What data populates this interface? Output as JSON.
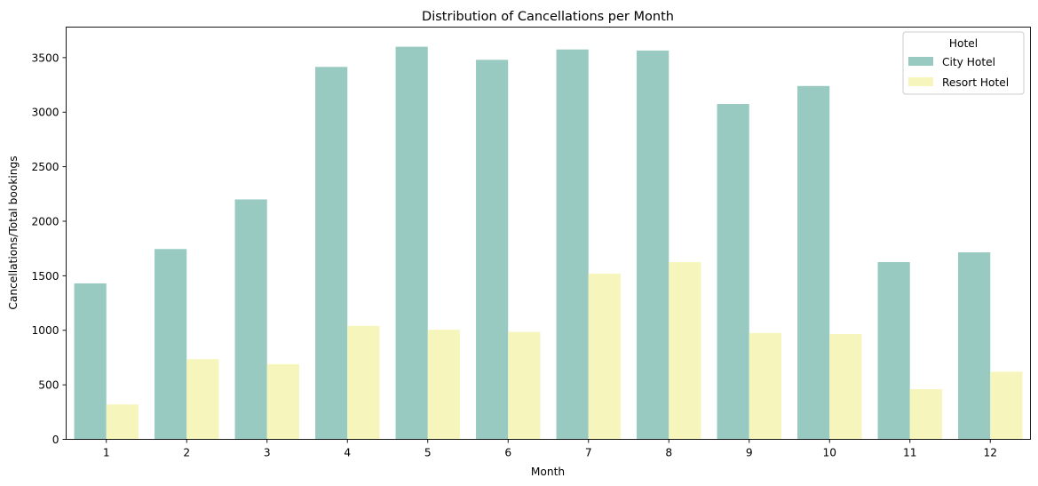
{
  "chart_data": {
    "type": "bar",
    "title": "Distribution of Cancellations per Month",
    "xlabel": "Month",
    "ylabel": "Cancellations/Total bookings",
    "categories": [
      "1",
      "2",
      "3",
      "4",
      "5",
      "6",
      "7",
      "8",
      "9",
      "10",
      "11",
      "12"
    ],
    "series": [
      {
        "name": "City Hotel",
        "color": "#98cac1",
        "values": [
          1430,
          1745,
          2200,
          3415,
          3600,
          3480,
          3575,
          3565,
          3075,
          3240,
          1625,
          1715
        ]
      },
      {
        "name": "Resort Hotel",
        "color": "#f6f6bc",
        "values": [
          320,
          735,
          690,
          1040,
          1005,
          985,
          1520,
          1625,
          975,
          965,
          460,
          620
        ]
      }
    ],
    "yticks": [
      0,
      500,
      1000,
      1500,
      2000,
      2500,
      3000,
      3500
    ],
    "ylim": [
      0,
      3780
    ],
    "legend": {
      "title": "Hotel",
      "position": "top-right"
    },
    "grid": false
  }
}
